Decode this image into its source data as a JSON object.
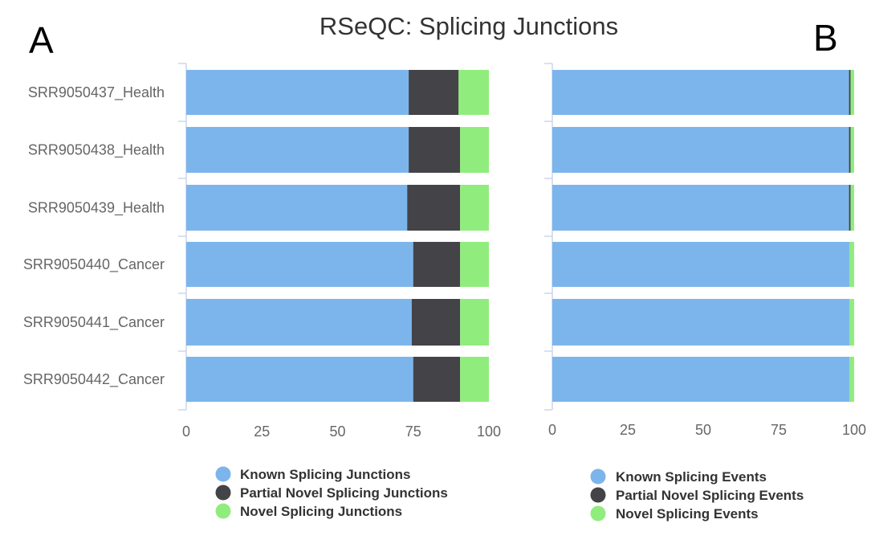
{
  "title": "RSeQC: Splicing Junctions",
  "colors": {
    "known": "#7cb5ec",
    "partial": "#434348",
    "novel": "#90ed7d"
  },
  "chart_data": [
    {
      "type": "bar",
      "orientation": "horizontal",
      "stacked": true,
      "panel_label": "A",
      "categories": [
        "SRR9050437_Health",
        "SRR9050438_Health",
        "SRR9050439_Health",
        "SRR9050440_Cancer",
        "SRR9050441_Cancer",
        "SRR9050442_Cancer"
      ],
      "series": [
        {
          "name": "Known Splicing Junctions",
          "color": "#7cb5ec",
          "values": [
            73.5,
            73.5,
            73.0,
            75.0,
            74.5,
            75.0
          ]
        },
        {
          "name": "Partial Novel Splicing Junctions",
          "color": "#434348",
          "values": [
            16.5,
            17.0,
            17.5,
            15.5,
            16.0,
            15.5
          ]
        },
        {
          "name": "Novel Splicing Junctions",
          "color": "#90ed7d",
          "values": [
            10.0,
            9.5,
            9.5,
            9.5,
            9.5,
            9.5
          ]
        }
      ],
      "xlim": [
        0,
        100
      ],
      "xticks": [
        "0",
        "25",
        "50",
        "75",
        "100"
      ],
      "show_category_labels": true,
      "legend_position": "bottom"
    },
    {
      "type": "bar",
      "orientation": "horizontal",
      "stacked": true,
      "panel_label": "B",
      "categories": [
        "SRR9050437_Health",
        "SRR9050438_Health",
        "SRR9050439_Health",
        "SRR9050440_Cancer",
        "SRR9050441_Cancer",
        "SRR9050442_Cancer"
      ],
      "series": [
        {
          "name": "Known Splicing Events",
          "color": "#7cb5ec",
          "values": [
            98.3,
            98.3,
            98.3,
            98.5,
            98.5,
            98.5
          ]
        },
        {
          "name": "Partial Novel Splicing Events",
          "color": "#434348",
          "values": [
            0.5,
            0.5,
            0.5,
            0.0,
            0.0,
            0.0
          ]
        },
        {
          "name": "Novel Splicing Events",
          "color": "#90ed7d",
          "values": [
            1.2,
            1.2,
            1.2,
            1.5,
            1.5,
            1.5
          ]
        }
      ],
      "xlim": [
        0,
        100
      ],
      "xticks": [
        "0",
        "25",
        "50",
        "75",
        "100"
      ],
      "show_category_labels": false,
      "legend_position": "bottom"
    }
  ]
}
